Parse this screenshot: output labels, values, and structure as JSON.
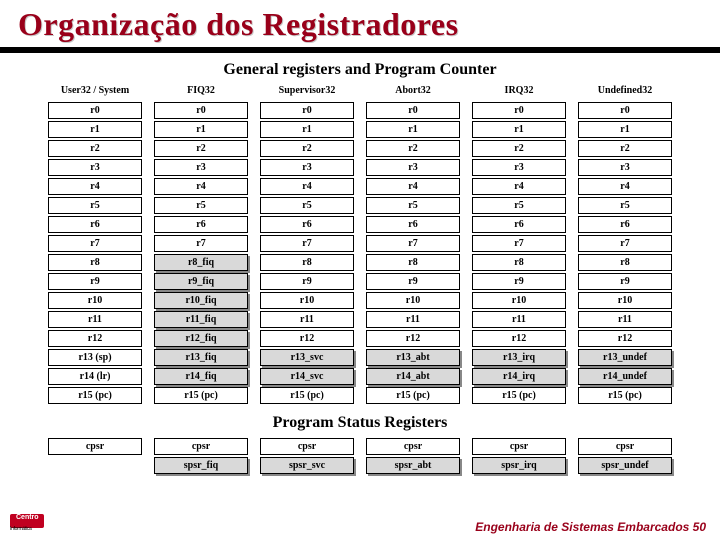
{
  "title": "Organização dos Registradores",
  "sections": {
    "general": "General registers and Program Counter",
    "psr": "Program Status Registers"
  },
  "columns": [
    "User32 / System",
    "FIQ32",
    "Supervisor32",
    "Abort32",
    "IRQ32",
    "Undefined32"
  ],
  "banked_bg": "#d9d9d9",
  "plain_bg": "#ffffff",
  "rows": [
    {
      "labels": [
        "r0",
        "r0",
        "r0",
        "r0",
        "r0",
        "r0"
      ],
      "banked": [
        0,
        0,
        0,
        0,
        0,
        0
      ]
    },
    {
      "labels": [
        "r1",
        "r1",
        "r1",
        "r1",
        "r1",
        "r1"
      ],
      "banked": [
        0,
        0,
        0,
        0,
        0,
        0
      ]
    },
    {
      "labels": [
        "r2",
        "r2",
        "r2",
        "r2",
        "r2",
        "r2"
      ],
      "banked": [
        0,
        0,
        0,
        0,
        0,
        0
      ]
    },
    {
      "labels": [
        "r3",
        "r3",
        "r3",
        "r3",
        "r3",
        "r3"
      ],
      "banked": [
        0,
        0,
        0,
        0,
        0,
        0
      ]
    },
    {
      "labels": [
        "r4",
        "r4",
        "r4",
        "r4",
        "r4",
        "r4"
      ],
      "banked": [
        0,
        0,
        0,
        0,
        0,
        0
      ]
    },
    {
      "labels": [
        "r5",
        "r5",
        "r5",
        "r5",
        "r5",
        "r5"
      ],
      "banked": [
        0,
        0,
        0,
        0,
        0,
        0
      ]
    },
    {
      "labels": [
        "r6",
        "r6",
        "r6",
        "r6",
        "r6",
        "r6"
      ],
      "banked": [
        0,
        0,
        0,
        0,
        0,
        0
      ]
    },
    {
      "labels": [
        "r7",
        "r7",
        "r7",
        "r7",
        "r7",
        "r7"
      ],
      "banked": [
        0,
        0,
        0,
        0,
        0,
        0
      ]
    },
    {
      "labels": [
        "r8",
        "r8_fiq",
        "r8",
        "r8",
        "r8",
        "r8"
      ],
      "banked": [
        0,
        1,
        0,
        0,
        0,
        0
      ]
    },
    {
      "labels": [
        "r9",
        "r9_fiq",
        "r9",
        "r9",
        "r9",
        "r9"
      ],
      "banked": [
        0,
        1,
        0,
        0,
        0,
        0
      ]
    },
    {
      "labels": [
        "r10",
        "r10_fiq",
        "r10",
        "r10",
        "r10",
        "r10"
      ],
      "banked": [
        0,
        1,
        0,
        0,
        0,
        0
      ]
    },
    {
      "labels": [
        "r11",
        "r11_fiq",
        "r11",
        "r11",
        "r11",
        "r11"
      ],
      "banked": [
        0,
        1,
        0,
        0,
        0,
        0
      ]
    },
    {
      "labels": [
        "r12",
        "r12_fiq",
        "r12",
        "r12",
        "r12",
        "r12"
      ],
      "banked": [
        0,
        1,
        0,
        0,
        0,
        0
      ]
    },
    {
      "labels": [
        "r13 (sp)",
        "r13_fiq",
        "r13_svc",
        "r13_abt",
        "r13_irq",
        "r13_undef"
      ],
      "banked": [
        0,
        1,
        1,
        1,
        1,
        1
      ]
    },
    {
      "labels": [
        "r14 (lr)",
        "r14_fiq",
        "r14_svc",
        "r14_abt",
        "r14_irq",
        "r14_undef"
      ],
      "banked": [
        0,
        1,
        1,
        1,
        1,
        1
      ]
    },
    {
      "labels": [
        "r15 (pc)",
        "r15 (pc)",
        "r15 (pc)",
        "r15 (pc)",
        "r15 (pc)",
        "r15 (pc)"
      ],
      "banked": [
        0,
        0,
        0,
        0,
        0,
        0
      ]
    }
  ],
  "psr_rows": [
    {
      "labels": [
        "cpsr",
        "cpsr",
        "cpsr",
        "cpsr",
        "cpsr",
        "cpsr"
      ],
      "banked": [
        0,
        0,
        0,
        0,
        0,
        0
      ]
    },
    {
      "labels": [
        "",
        "spsr_fiq",
        "spsr_svc",
        "spsr_abt",
        "spsr_irq",
        "spsr_undef"
      ],
      "banked": [
        0,
        1,
        1,
        1,
        1,
        1
      ]
    }
  ],
  "footer": "Engenharia de Sistemas Embarcados 50",
  "logo": {
    "red_text": "Centro",
    "sub_text": "Informática"
  }
}
